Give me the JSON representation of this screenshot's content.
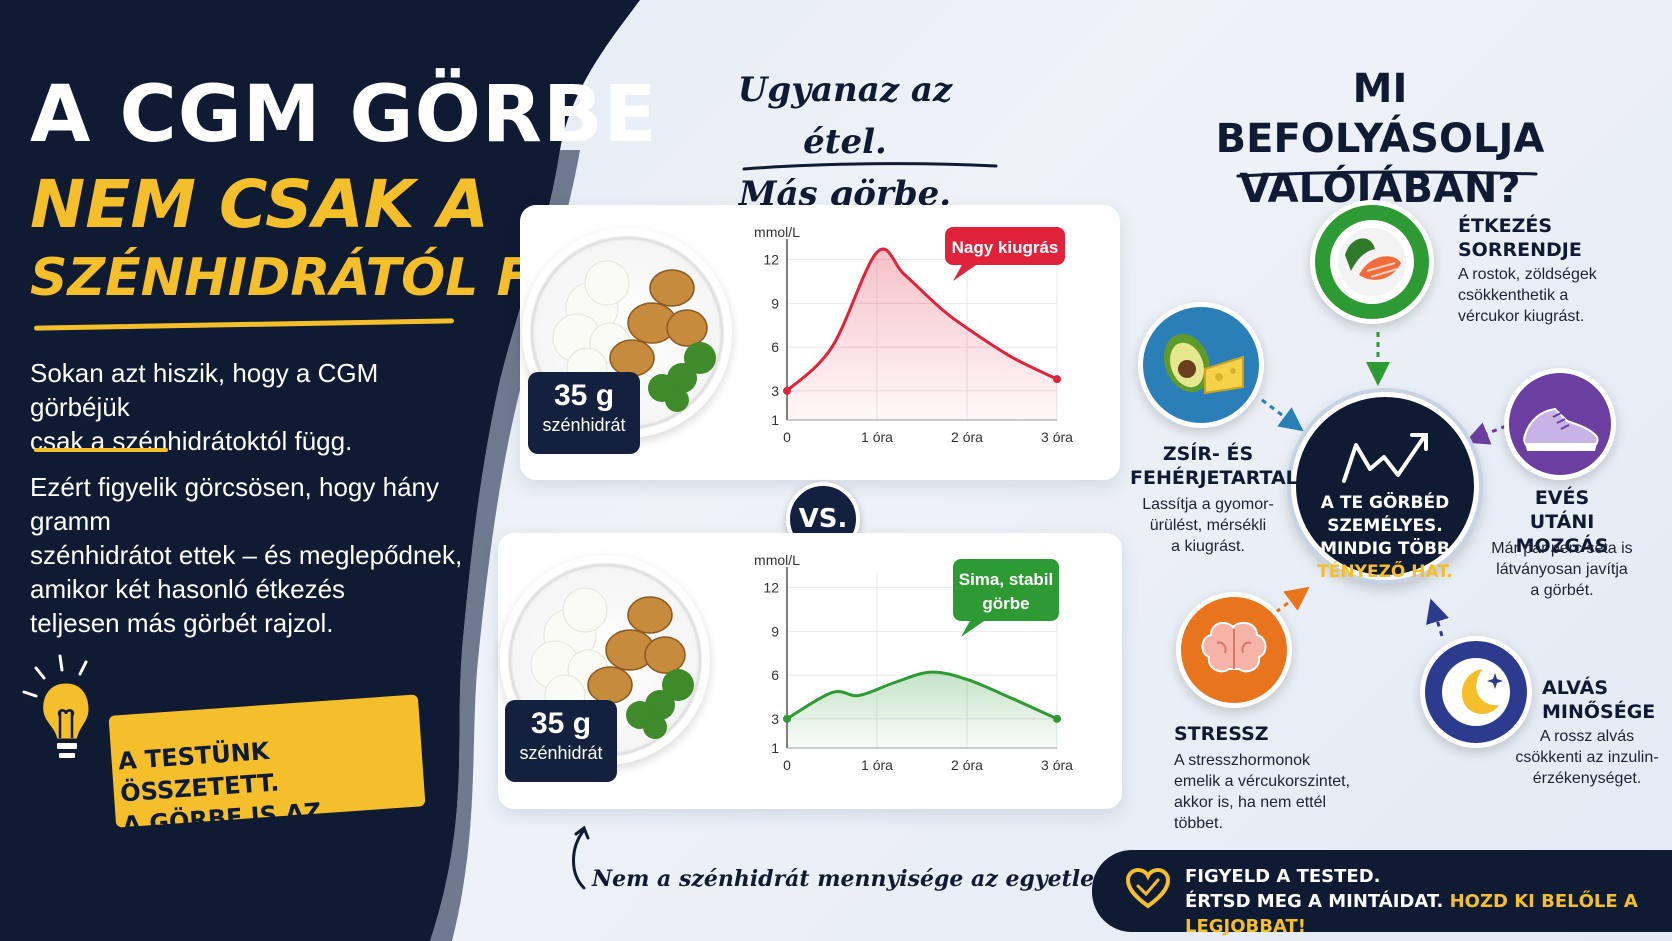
{
  "left": {
    "title_line1": "A CGM GÖRBE",
    "title_line2": "NEM CSAK A",
    "title_line3": "SZÉNHIDRÁTÓL FÜGG!",
    "para1": [
      "Sokan azt hiszik, hogy a CGM görbéjük",
      "csak a szénhidrátoktól függ."
    ],
    "para2": [
      "Ezért figyelik görcsösen, hogy hány gramm",
      "szénhidrátot ettek – és meglepődnek,",
      "amikor két hasonló étkezés",
      "teljesen más görbét rajzol."
    ],
    "banner": [
      "A TESTÜNK ÖSSZETETT.",
      "A GÖRBE IS AZ."
    ]
  },
  "middle": {
    "heading": [
      "Ugyanaz az étel.",
      "Más görbe."
    ],
    "vs": "VS.",
    "footnote": "Nem a szénhidrát mennyisége az egyetlen tényező!"
  },
  "meals": [
    {
      "badge_amount": "35 g",
      "badge_label": "szénhidrát",
      "callout": "Nagy kiugrás",
      "callout_color": "#e0223b",
      "chart_data": {
        "type": "line",
        "ylabel": "mmol/L",
        "y_ticks": [
          "12",
          "9",
          "6",
          "3",
          "1"
        ],
        "x_ticks": [
          "0",
          "1 óra",
          "2 óra",
          "3 óra"
        ],
        "x": [
          0,
          0.5,
          1,
          1.3,
          1.7,
          2,
          2.5,
          3
        ],
        "values": [
          3.0,
          6.0,
          12.5,
          11.0,
          8.7,
          7.3,
          5.3,
          3.8
        ],
        "ylim": [
          1,
          13
        ],
        "xlim": [
          0,
          3
        ],
        "color": "#e0223b"
      }
    },
    {
      "badge_amount": "35 g",
      "badge_label": "szénhidrát",
      "callout": [
        "Sima, stabil",
        "görbe"
      ],
      "callout_color": "#2e9a34",
      "chart_data": {
        "type": "line",
        "ylabel": "mmol/L",
        "y_ticks": [
          "12",
          "9",
          "6",
          "3",
          "1"
        ],
        "x_ticks": [
          "0",
          "1 óra",
          "2 óra",
          "3 óra"
        ],
        "x": [
          0,
          0.5,
          0.8,
          1.2,
          1.6,
          2,
          2.5,
          3
        ],
        "values": [
          3.0,
          4.8,
          4.6,
          5.5,
          6.2,
          5.7,
          4.4,
          3.0
        ],
        "ylim": [
          1,
          13
        ],
        "xlim": [
          0,
          3
        ],
        "color": "#2e9a34"
      }
    }
  ],
  "right": {
    "heading": [
      "MI BEFOLYÁSOLJA",
      "VALÓJÁBAN?"
    ],
    "center": [
      "A TE GÖRBÉD",
      "SZEMÉLYES.",
      "MINDIG TÖBB"
    ],
    "center_highlight": "TÉNYEZŐ HAT.",
    "factors": {
      "order": {
        "title": [
          "ÉTKEZÉS",
          "SORRENDJE"
        ],
        "text": [
          "A rostok, zöldségek",
          "csökkenthetik a",
          "vércukor kiugrást."
        ],
        "icon": "salad-salmon-icon"
      },
      "fat": {
        "title": [
          "ZSÍR- ÉS",
          "FEHÉRJETARTALOM"
        ],
        "text": [
          "Lassítja a gyomor-",
          "ürülést, mérsékli",
          "a kiugrást."
        ],
        "icon": "avocado-cheese-icon"
      },
      "move": {
        "title": [
          "EVÉS UTÁNI",
          "MOZGÁS"
        ],
        "text": [
          "Már pár perc séta is",
          "látványosan javítja",
          "a görbét."
        ],
        "icon": "sneaker-icon"
      },
      "stress": {
        "title": [
          "STRESSZ"
        ],
        "text": [
          "A stresszhormonok",
          "emelik a vércukorszintet,",
          "akkor is, ha nem ettél",
          "többet."
        ],
        "icon": "brain-icon"
      },
      "sleep": {
        "title": [
          "ALVÁS",
          "MINŐSÉGE"
        ],
        "text": [
          "A rossz alvás",
          "csökkenti az inzulin-",
          "érzékenységet."
        ],
        "icon": "moon-stars-icon"
      }
    },
    "bottom": {
      "line1": "FIGYELD A TESTED.",
      "line2": "ÉRTSD MEG A MINTÁIDAT.",
      "line2_highlight": "HOZD KI BELŐLE A LEGJOBBAT!"
    }
  },
  "colors": {
    "navy": "#0f1a33",
    "yellow": "#f4bf2a",
    "red": "#e0223b",
    "green": "#2e9a34"
  }
}
